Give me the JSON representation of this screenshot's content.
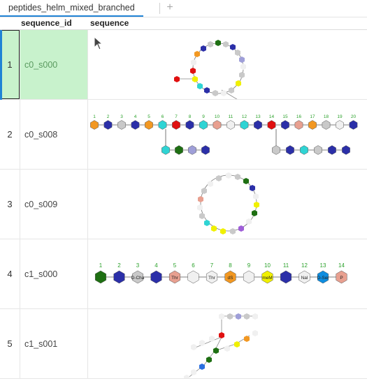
{
  "tab": {
    "title": "peptides_helm_mixed_branched",
    "add_label": "+"
  },
  "columns": {
    "id": "sequence_id",
    "seq": "sequence"
  },
  "rows": [
    {
      "num": "1",
      "id": "c0_s000"
    },
    {
      "num": "2",
      "id": "c0_s008"
    },
    {
      "num": "3",
      "id": "c0_s009"
    },
    {
      "num": "4",
      "id": "c1_s000"
    },
    {
      "num": "5",
      "id": "c1_s001"
    }
  ],
  "row4_sequence": {
    "positions": [
      "1",
      "2",
      "3",
      "4",
      "5",
      "6",
      "7",
      "8",
      "9",
      "10",
      "11",
      "12",
      "13",
      "14"
    ],
    "labels": [
      "",
      "",
      "D-Cha",
      "",
      "Thr",
      "",
      "Thr",
      "dS",
      "",
      "meM",
      "",
      "Nal",
      "D-Ser",
      "P"
    ],
    "colors": [
      "#1e6f12",
      "#2b2fa8",
      "#c9c9c9",
      "#2b2fa8",
      "#e8a090",
      "#f0f0f0",
      "#f0f0f0",
      "#f29822",
      "#f0f0f0",
      "#f0f000",
      "#2b2fa8",
      "#f0f0f0",
      "#0d8de0",
      "#e8a090"
    ]
  },
  "row2_sequence": {
    "positions": [
      "1",
      "2",
      "3",
      "4",
      "5",
      "6",
      "7",
      "8",
      "9",
      "10",
      "11",
      "12",
      "13",
      "14",
      "15",
      "16",
      "17",
      "18",
      "19",
      "20"
    ],
    "colors": [
      "#f29822",
      "#2b2fa8",
      "#c9c9c9",
      "#2b2fa8",
      "#f29822",
      "#2fd4d4",
      "#e01010",
      "#2b2fa8",
      "#2fd4d4",
      "#e8a090",
      "#f0f0f0",
      "#2fd4d4",
      "#2b2fa8",
      "#e01010",
      "#2b2fa8",
      "#e8a090",
      "#f29822",
      "#c9c9c9",
      "#f0f0f0",
      "#2b2fa8"
    ]
  },
  "colors": {
    "accent": "#2083d5",
    "selected_bg": "#c8f2cc"
  }
}
